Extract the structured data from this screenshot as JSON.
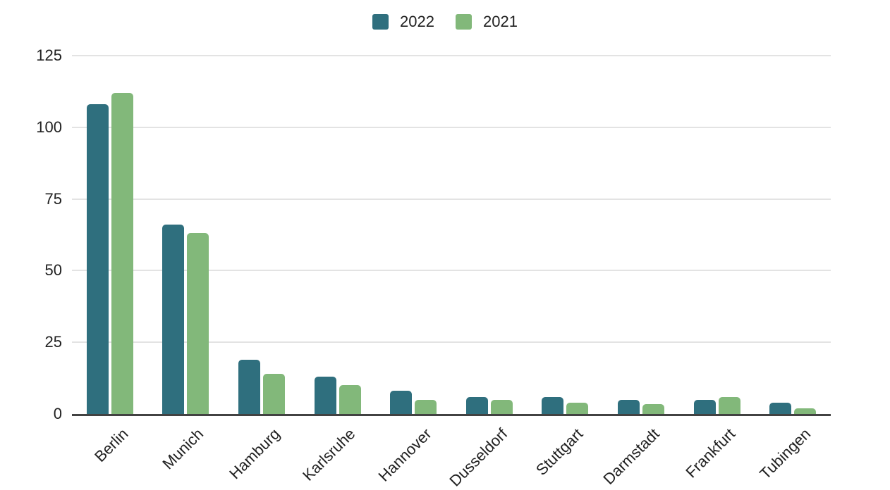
{
  "page": {
    "background": "#ffffff"
  },
  "legend": {
    "position": "top-center",
    "items": [
      {
        "label": "2022",
        "color": "#2f6f7e"
      },
      {
        "label": "2021",
        "color": "#82b87a"
      }
    ]
  },
  "y_axis": {
    "tick_labels": [
      "125",
      "100",
      "75",
      "50",
      "25",
      "0"
    ]
  },
  "chart_data": {
    "type": "bar",
    "title": "",
    "xlabel": "",
    "ylabel": "",
    "categories": [
      "Berlin",
      "Munich",
      "Hamburg",
      "Karlsruhe",
      "Hannover",
      "Dusseldorf",
      "Stuttgart",
      "Darmstadt",
      "Frankfurt",
      "Tubingen"
    ],
    "series": [
      {
        "name": "2022",
        "color": "#2f6f7e",
        "values": [
          108,
          66,
          19,
          13,
          8,
          6,
          6,
          5,
          5,
          4
        ]
      },
      {
        "name": "2021",
        "color": "#82b87a",
        "values": [
          112,
          63,
          14,
          10,
          5,
          5,
          4,
          3.5,
          6,
          2
        ]
      }
    ],
    "ylim": [
      0,
      125
    ],
    "y_ticks": [
      0,
      25,
      50,
      75,
      100,
      125
    ],
    "grid": true,
    "legend_position": "top",
    "x_label_rotation_deg": -45,
    "colors": {
      "grid_line": "#e3e3e3",
      "axis_line": "#424242",
      "text": "#212121"
    }
  }
}
